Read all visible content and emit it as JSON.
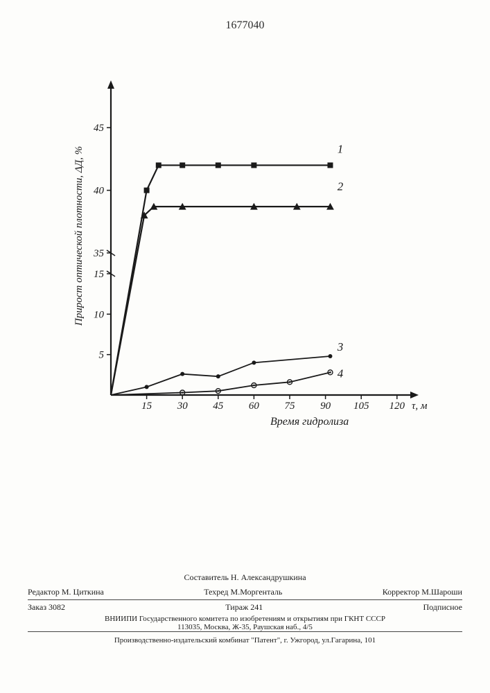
{
  "doc_number": "1677040",
  "chart": {
    "type": "line",
    "y_axis": {
      "label": "Прирост оптической плотности, ΔД, %",
      "ticks": [
        5,
        10,
        15,
        35,
        40,
        45
      ],
      "break_between": [
        15,
        35
      ],
      "lim": [
        0,
        48
      ],
      "label_fontsize": 16,
      "tick_fontsize": 15
    },
    "x_axis": {
      "label": "Время гидролиза",
      "unit_label": "τ, м",
      "ticks": [
        15,
        30,
        45,
        60,
        75,
        90,
        105,
        120
      ],
      "lim": [
        0,
        125
      ],
      "label_fontsize": 16,
      "tick_fontsize": 15
    },
    "background_color": "#fdfdfb",
    "axis_color": "#1a1a1a",
    "axis_width": 2.2,
    "series": [
      {
        "id": "1",
        "marker": "square-filled",
        "marker_size": 8,
        "color": "#1a1a1a",
        "line_width": 2.2,
        "data": [
          [
            0,
            0
          ],
          [
            15,
            40
          ],
          [
            20,
            42
          ],
          [
            30,
            42
          ],
          [
            45,
            42
          ],
          [
            60,
            42
          ],
          [
            92,
            42
          ]
        ],
        "label_pos": [
          95,
          43
        ]
      },
      {
        "id": "2",
        "marker": "triangle-filled",
        "marker_size": 9,
        "color": "#1a1a1a",
        "line_width": 2.2,
        "data": [
          [
            0,
            0
          ],
          [
            14,
            38
          ],
          [
            18,
            38.7
          ],
          [
            30,
            38.7
          ],
          [
            60,
            38.7
          ],
          [
            78,
            38.7
          ],
          [
            92,
            38.7
          ]
        ],
        "label_pos": [
          95,
          40
        ]
      },
      {
        "id": "3",
        "marker": "circle-filled",
        "marker_size": 6,
        "color": "#1a1a1a",
        "line_width": 1.8,
        "data": [
          [
            0,
            0
          ],
          [
            15,
            1
          ],
          [
            30,
            2.6
          ],
          [
            45,
            2.3
          ],
          [
            60,
            4
          ],
          [
            92,
            4.8
          ]
        ],
        "label_pos": [
          95,
          5.5
        ]
      },
      {
        "id": "4",
        "marker": "circle-open-dot",
        "marker_size": 7,
        "color": "#1a1a1a",
        "line_width": 1.8,
        "data": [
          [
            0,
            0
          ],
          [
            30,
            0.3
          ],
          [
            45,
            0.5
          ],
          [
            60,
            1.2
          ],
          [
            75,
            1.6
          ],
          [
            92,
            2.8
          ]
        ],
        "label_pos": [
          95,
          2.2
        ]
      }
    ]
  },
  "footer": {
    "compiler": "Составитель Н. Александрушкина",
    "editor": "Редактор М. Циткина",
    "techred": "Техред М.Моргенталь",
    "corrector": "Корректор М.Шароши",
    "order": "Заказ 3082",
    "tirage": "Тираж 241",
    "subscr": "Подписное",
    "org1": "ВНИИПИ Государственного комитета по изобретениям и открытиям при ГКНТ СССР",
    "org1addr": "113035, Москва, Ж-35, Раушская наб., 4/5",
    "org2": "Производственно-издательский комбинат \"Патент\", г. Ужгород, ул.Гагарина, 101"
  }
}
